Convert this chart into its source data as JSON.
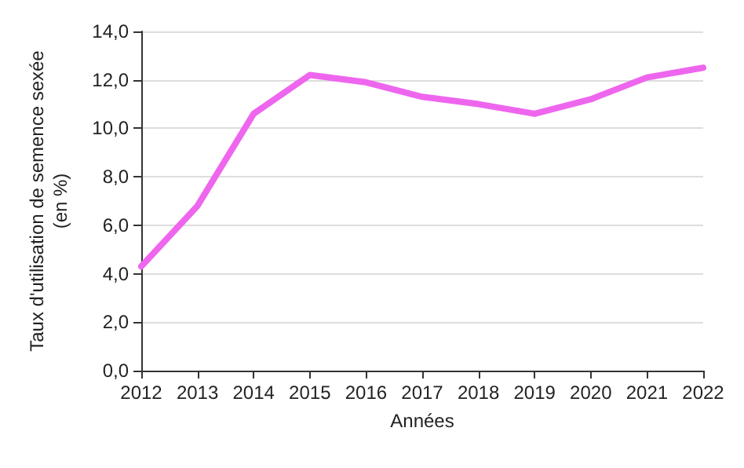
{
  "chart_data": {
    "type": "line",
    "xlabel": "Années",
    "ylabel": "Taux d'utilisation de semence sexée\n(en %)",
    "categories": [
      "2012",
      "2013",
      "2014",
      "2015",
      "2016",
      "2017",
      "2018",
      "2019",
      "2020",
      "2021",
      "2022"
    ],
    "series": [
      {
        "color": "#ee66ee",
        "values": [
          4.3,
          6.8,
          10.6,
          12.2,
          11.9,
          11.3,
          11.0,
          10.6,
          11.2,
          12.1,
          12.5
        ]
      }
    ],
    "ylim": [
      0,
      14
    ],
    "yticks": [
      {
        "value": 0,
        "label": "0,0"
      },
      {
        "value": 2,
        "label": "2,0"
      },
      {
        "value": 4,
        "label": "4,0"
      },
      {
        "value": 6,
        "label": "6,0"
      },
      {
        "value": 8,
        "label": "8,0"
      },
      {
        "value": 10,
        "label": "10,0"
      },
      {
        "value": 12,
        "label": "12,0"
      },
      {
        "value": 14,
        "label": "14,0"
      }
    ],
    "grid": "y",
    "marker": "none",
    "line_style": "solid"
  }
}
